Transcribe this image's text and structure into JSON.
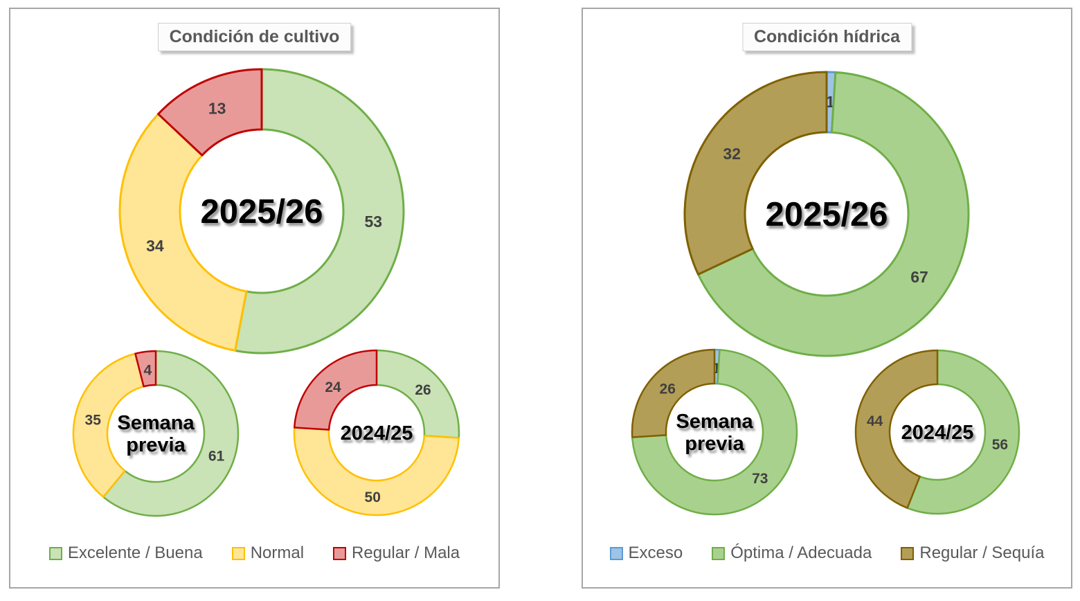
{
  "styles": {
    "value_label_color": "#404040",
    "legend_text_color": "#595959",
    "title_text_color": "#595959",
    "panel_border_color": "#a6a6a6",
    "center_label_color": "#000000"
  },
  "chart_data": [
    {
      "type": "donut",
      "title": "Condición de cultivo",
      "legend_position": "bottom",
      "categories": [
        {
          "name": "Excelente / Buena",
          "fill": "#c9e2b6",
          "stroke": "#6fae47"
        },
        {
          "name": "Normal",
          "fill": "#ffe596",
          "stroke": "#ffc000"
        },
        {
          "name": "Regular / Mala",
          "fill": "#e89a99",
          "stroke": "#c00000"
        }
      ],
      "donuts": [
        {
          "label": "2025/26",
          "center_label_lines": [
            "2025/26"
          ],
          "values": [
            53,
            34,
            13
          ]
        },
        {
          "label": "Semana previa",
          "center_label_lines": [
            "Semana",
            "previa"
          ],
          "values": [
            61,
            35,
            4
          ]
        },
        {
          "label": "2024/25",
          "center_label_lines": [
            "2024/25"
          ],
          "values": [
            26,
            50,
            24
          ]
        }
      ]
    },
    {
      "type": "donut",
      "title": "Condición hídrica",
      "legend_position": "bottom",
      "categories": [
        {
          "name": "Exceso",
          "fill": "#9dc3e6",
          "stroke": "#5b9bd5"
        },
        {
          "name": "Óptima / Adecuada",
          "fill": "#a9d18e",
          "stroke": "#6fae47"
        },
        {
          "name": "Regular / Sequía",
          "fill": "#b39e57",
          "stroke": "#7f6000"
        }
      ],
      "donuts": [
        {
          "label": "2025/26",
          "center_label_lines": [
            "2025/26"
          ],
          "values": [
            1,
            67,
            32
          ]
        },
        {
          "label": "Semana previa",
          "center_label_lines": [
            "Semana",
            "previa"
          ],
          "values": [
            1,
            73,
            26
          ]
        },
        {
          "label": "2024/25",
          "center_label_lines": [
            "2024/25"
          ],
          "values": [
            0,
            56,
            44
          ]
        }
      ]
    }
  ]
}
